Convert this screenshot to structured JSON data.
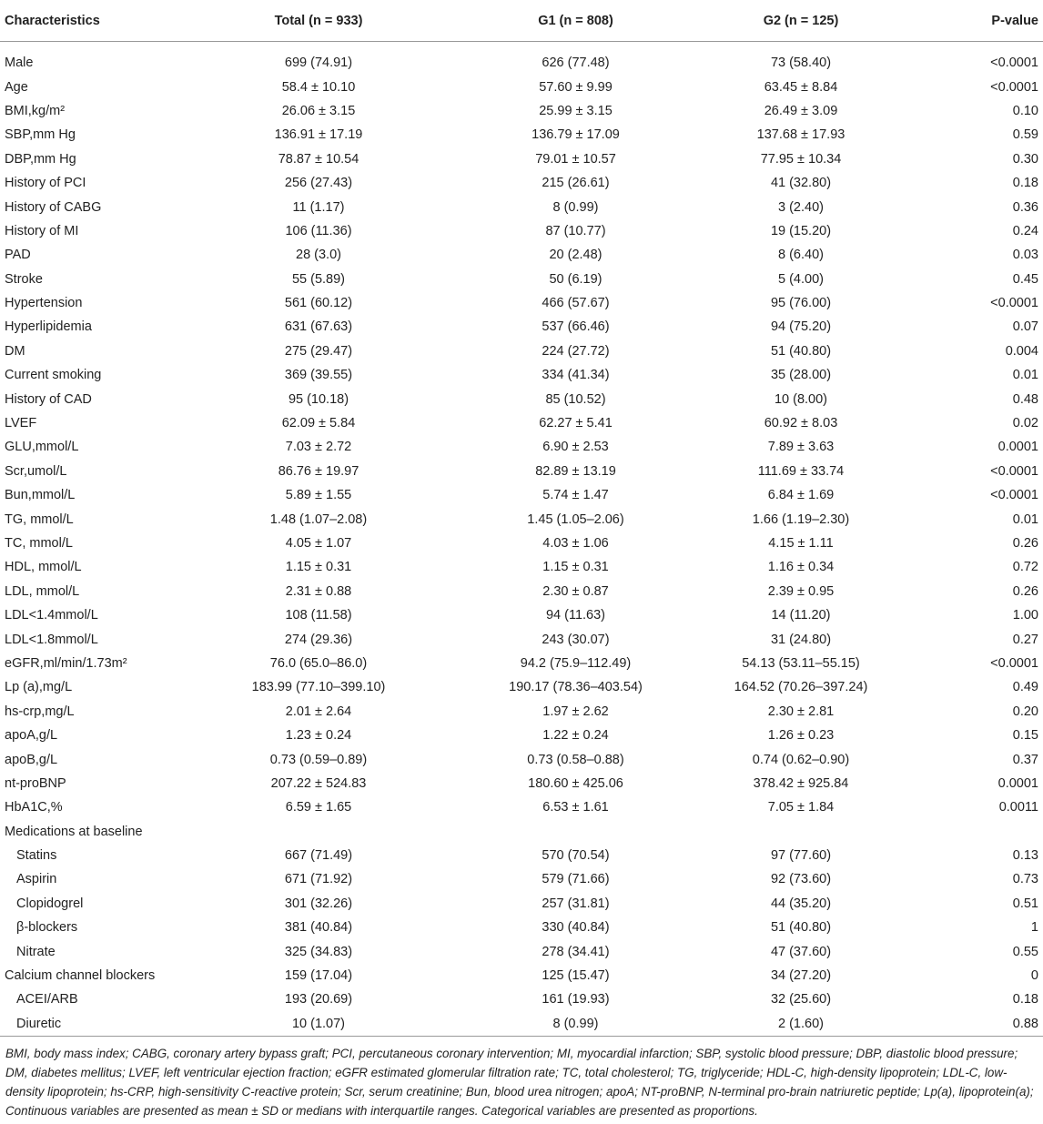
{
  "table": {
    "header": [
      "Characteristics",
      "Total (n = 933)",
      "G1 (n = 808)",
      "G2 (n = 125)",
      "P-value"
    ],
    "rows": [
      [
        "Male",
        "699 (74.91)",
        "626 (77.48)",
        "73 (58.40)",
        "<0.0001"
      ],
      [
        "Age",
        "58.4 ± 10.10",
        "57.60 ± 9.99",
        "63.45 ± 8.84",
        "<0.0001"
      ],
      [
        "BMI,kg/m²",
        "26.06 ± 3.15",
        "25.99 ± 3.15",
        "26.49 ± 3.09",
        "0.10"
      ],
      [
        "SBP,mm Hg",
        "136.91 ± 17.19",
        "136.79 ± 17.09",
        "137.68 ± 17.93",
        "0.59"
      ],
      [
        "DBP,mm Hg",
        "78.87 ± 10.54",
        "79.01 ± 10.57",
        "77.95 ± 10.34",
        "0.30"
      ],
      [
        "History of PCI",
        "256 (27.43)",
        "215 (26.61)",
        "41 (32.80)",
        "0.18"
      ],
      [
        "History of CABG",
        "11 (1.17)",
        "8 (0.99)",
        "3 (2.40)",
        "0.36"
      ],
      [
        "History of MI",
        "106 (11.36)",
        "87 (10.77)",
        "19 (15.20)",
        "0.24"
      ],
      [
        "PAD",
        "28 (3.0)",
        "20 (2.48)",
        "8 (6.40)",
        "0.03"
      ],
      [
        "Stroke",
        "55 (5.89)",
        "50 (6.19)",
        "5 (4.00)",
        "0.45"
      ],
      [
        "Hypertension",
        "561 (60.12)",
        "466 (57.67)",
        "95 (76.00)",
        "<0.0001"
      ],
      [
        "Hyperlipidemia",
        "631 (67.63)",
        "537 (66.46)",
        "94 (75.20)",
        "0.07"
      ],
      [
        "DM",
        "275 (29.47)",
        "224 (27.72)",
        "51 (40.80)",
        "0.004"
      ],
      [
        "Current smoking",
        "369 (39.55)",
        "334 (41.34)",
        "35 (28.00)",
        "0.01"
      ],
      [
        "History of CAD",
        "95 (10.18)",
        "85 (10.52)",
        "10 (8.00)",
        "0.48"
      ],
      [
        "LVEF",
        "62.09 ± 5.84",
        "62.27 ± 5.41",
        "60.92 ± 8.03",
        "0.02"
      ],
      [
        "GLU,mmol/L",
        "7.03 ± 2.72",
        "6.90 ± 2.53",
        "7.89 ± 3.63",
        "0.0001"
      ],
      [
        "Scr,umol/L",
        "86.76 ± 19.97",
        "82.89 ± 13.19",
        "111.69 ± 33.74",
        "<0.0001"
      ],
      [
        "Bun,mmol/L",
        "5.89 ± 1.55",
        "5.74 ± 1.47",
        "6.84 ± 1.69",
        "<0.0001"
      ],
      [
        "TG, mmol/L",
        "1.48 (1.07–2.08)",
        "1.45 (1.05–2.06)",
        "1.66 (1.19–2.30)",
        "0.01"
      ],
      [
        "TC, mmol/L",
        "4.05 ± 1.07",
        "4.03 ± 1.06",
        "4.15 ± 1.11",
        "0.26"
      ],
      [
        "HDL, mmol/L",
        "1.15 ± 0.31",
        "1.15 ± 0.31",
        "1.16 ± 0.34",
        "0.72"
      ],
      [
        "LDL, mmol/L",
        "2.31 ± 0.88",
        "2.30 ± 0.87",
        "2.39 ± 0.95",
        "0.26"
      ],
      [
        "LDL<1.4mmol/L",
        "108 (11.58)",
        "94 (11.63)",
        "14 (11.20)",
        "1.00"
      ],
      [
        "LDL<1.8mmol/L",
        "274 (29.36)",
        "243 (30.07)",
        "31 (24.80)",
        "0.27"
      ],
      [
        "eGFR,ml/min/1.73m²",
        "76.0 (65.0–86.0)",
        "94.2 (75.9–112.49)",
        "54.13 (53.11–55.15)",
        "<0.0001"
      ],
      [
        "Lp (a),mg/L",
        "183.99 (77.10–399.10)",
        "190.17 (78.36–403.54)",
        "164.52 (70.26–397.24)",
        "0.49"
      ],
      [
        "hs-crp,mg/L",
        "2.01 ± 2.64",
        "1.97 ± 2.62",
        "2.30 ± 2.81",
        "0.20"
      ],
      [
        "apoA,g/L",
        "1.23 ± 0.24",
        "1.22 ± 0.24",
        "1.26 ± 0.23",
        "0.15"
      ],
      [
        "apoB,g/L",
        "0.73 (0.59–0.89)",
        "0.73 (0.58–0.88)",
        "0.74 (0.62–0.90)",
        "0.37"
      ],
      [
        "nt-proBNP",
        "207.22 ± 524.83",
        "180.60 ± 425.06",
        "378.42 ± 925.84",
        "0.0001"
      ],
      [
        "HbA1C,%",
        "6.59 ± 1.65",
        "6.53 ± 1.61",
        "7.05 ± 1.84",
        "0.0011"
      ],
      [
        "Medications at baseline"
      ],
      [
        "Statins",
        "667 (71.49)",
        "570 (70.54)",
        "97 (77.60)",
        "0.13"
      ],
      [
        "Aspirin",
        "671 (71.92)",
        "579 (71.66)",
        "92 (73.60)",
        "0.73"
      ],
      [
        "Clopidogrel",
        "301 (32.26)",
        "257 (31.81)",
        "44 (35.20)",
        "0.51"
      ],
      [
        "β-blockers",
        "381 (40.84)",
        "330 (40.84)",
        "51 (40.80)",
        "1"
      ],
      [
        "Nitrate",
        "325 (34.83)",
        "278 (34.41)",
        "47 (37.60)",
        "0.55"
      ],
      [
        "Calcium channel blockers",
        "159 (17.04)",
        "125 (15.47)",
        "34 (27.20)",
        "0"
      ],
      [
        "ACEI/ARB",
        "193 (20.69)",
        "161 (19.93)",
        "32 (25.60)",
        "0.18"
      ],
      [
        "Diuretic",
        "10 (1.07)",
        "8 (0.99)",
        "2 (1.60)",
        "0.88"
      ]
    ]
  },
  "footnote": "BMI, body mass index; CABG, coronary artery bypass graft; PCI, percutaneous coronary intervention; MI, myocardial infarction; SBP, systolic blood pressure; DBP, diastolic blood pressure; DM, diabetes mellitus; LVEF, left ventricular ejection fraction; eGFR estimated glomerular filtration rate; TC, total cholesterol; TG, triglyceride; HDL-C, high-density lipoprotein; LDL-C, low-density lipoprotein; hs-CRP, high-sensitivity C-reactive protein; Scr, serum creatinine; Bun, blood urea nitrogen; apoA; NT-proBNP, N-terminal pro-brain natriuretic peptide; Lp(a), lipoprotein(a); Continuous variables are presented as mean ± SD or medians with interquartile ranges. Categorical variables are presented as proportions."
}
